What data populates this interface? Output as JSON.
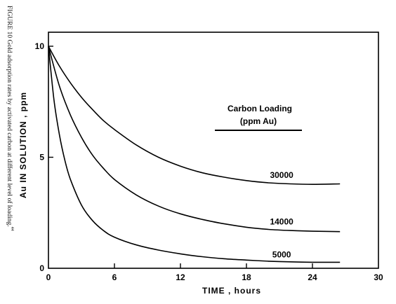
{
  "figure": {
    "caption": "FIGURE 10   Gold adsorption rates by activated carbon at different level of loading.",
    "caption_ref": "44"
  },
  "chart_data": {
    "type": "line",
    "xlabel": "TIME ,  hours",
    "ylabel": "Au  IN  SOLUTION ,  ppm",
    "xlim": [
      0,
      30
    ],
    "ylim": [
      0,
      10
    ],
    "xticks": [
      "0",
      "6",
      "12",
      "18",
      "24",
      "30"
    ],
    "yticks": [
      "0",
      "5",
      "10"
    ],
    "legend_title_line1": "Carbon Loading",
    "legend_title_line2": "(ppm Au)",
    "series": [
      {
        "name": "30000",
        "x": [
          0,
          1,
          2,
          3,
          4,
          5,
          6,
          8,
          10,
          12,
          14,
          16,
          18,
          20,
          22,
          24,
          26.5
        ],
        "y": [
          10,
          9.1,
          8.35,
          7.7,
          7.15,
          6.65,
          6.25,
          5.55,
          5.0,
          4.6,
          4.3,
          4.1,
          3.95,
          3.85,
          3.8,
          3.78,
          3.8
        ]
      },
      {
        "name": "14000",
        "x": [
          0,
          1,
          2,
          3,
          4,
          5,
          6,
          8,
          10,
          12,
          14,
          16,
          18,
          20,
          22,
          24,
          26.5
        ],
        "y": [
          10,
          8.2,
          6.9,
          5.9,
          5.1,
          4.5,
          4.0,
          3.3,
          2.8,
          2.45,
          2.2,
          2.0,
          1.85,
          1.75,
          1.7,
          1.67,
          1.65
        ]
      },
      {
        "name": "5000",
        "x": [
          0,
          0.5,
          1,
          1.5,
          2,
          3,
          4,
          5,
          6,
          8,
          10,
          12,
          14,
          16,
          18,
          20,
          22,
          24,
          26.5
        ],
        "y": [
          10,
          7.6,
          6.0,
          4.85,
          4.0,
          2.85,
          2.15,
          1.7,
          1.4,
          1.05,
          0.82,
          0.65,
          0.52,
          0.43,
          0.37,
          0.32,
          0.29,
          0.27,
          0.27
        ]
      }
    ]
  }
}
